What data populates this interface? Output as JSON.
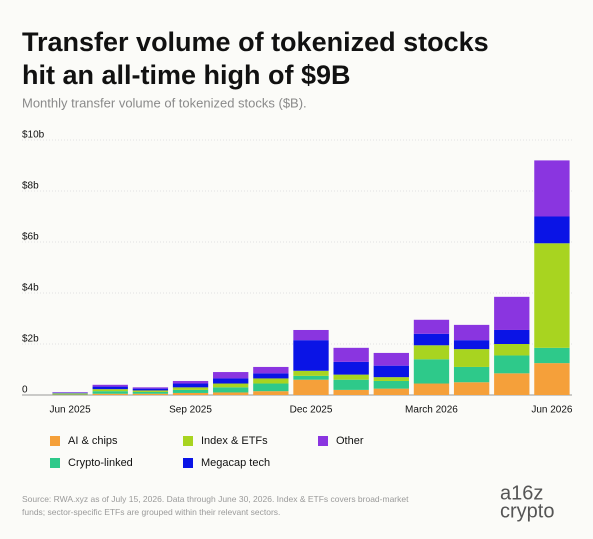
{
  "chart_data": {
    "type": "stacked-bar",
    "title_lines": [
      "Transfer volume of tokenized stocks",
      "hit an all-time high of $9B"
    ],
    "subtitle": "Monthly transfer volume of tokenized stocks ($B).",
    "categories": [
      "Jun 2025",
      null,
      null,
      "Sep 2025",
      null,
      null,
      "Dec 2025",
      null,
      null,
      "March 2026",
      null,
      null,
      "Jun 2026"
    ],
    "series": [
      {
        "name": "AI & chips",
        "color": "#f5a03a",
        "values": [
          0.02,
          0.05,
          0.05,
          0.08,
          0.1,
          0.15,
          0.6,
          0.2,
          0.25,
          0.45,
          0.5,
          0.85,
          1.25
        ]
      },
      {
        "name": "Crypto-linked",
        "color": "#2ec98a",
        "values": [
          0.03,
          0.1,
          0.07,
          0.12,
          0.2,
          0.3,
          0.15,
          0.4,
          0.3,
          0.95,
          0.6,
          0.7,
          0.6
        ]
      },
      {
        "name": "Index & ETFs",
        "color": "#a8d420",
        "values": [
          0.02,
          0.08,
          0.06,
          0.1,
          0.15,
          0.2,
          0.2,
          0.2,
          0.15,
          0.55,
          0.7,
          0.45,
          4.1
        ]
      },
      {
        "name": "Megacap tech",
        "color": "#0a14e6",
        "values": [
          0.02,
          0.1,
          0.07,
          0.15,
          0.2,
          0.2,
          1.2,
          0.5,
          0.45,
          0.45,
          0.35,
          0.55,
          1.05
        ]
      },
      {
        "name": "Other",
        "color": "#8a35e0",
        "values": [
          0.02,
          0.07,
          0.05,
          0.1,
          0.25,
          0.25,
          0.4,
          0.55,
          0.5,
          0.55,
          0.6,
          1.3,
          2.2
        ]
      }
    ],
    "ylim": [
      0,
      10
    ],
    "yticks": [
      0,
      {
        "value": 2,
        "label": "$2b"
      },
      {
        "value": 4,
        "label": "$4b"
      },
      {
        "value": 6,
        "label": "$6b"
      },
      {
        "value": 8,
        "label": "$8b"
      },
      {
        "value": 10,
        "label": "$10b"
      }
    ],
    "grid": true,
    "source": "Source: RWA.xyz as of July 15, 2026. Data through June 30, 2026. Index & ETFs covers broad-market funds; sector-specific ETFs are grouped within their relevant sectors.",
    "logo_lines": [
      "a16z",
      "crypto"
    ]
  }
}
